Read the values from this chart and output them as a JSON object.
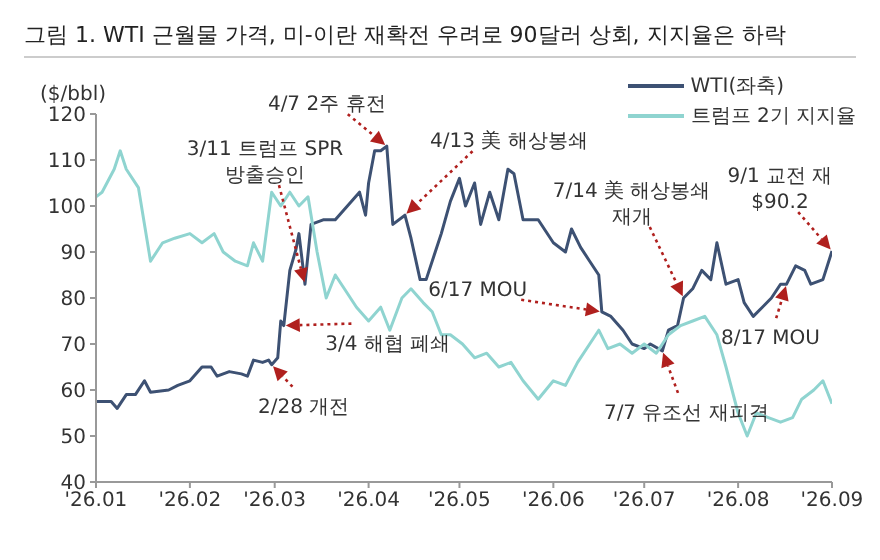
{
  "chart_data": {
    "type": "line",
    "title": "그림 1. WTI 근월물 가격, 미-이란 재확전 우려로 90달러 상회, 지지율은 하락",
    "ylabel": "($/bbl)",
    "ylim": [
      40,
      120
    ],
    "yticks": [
      40,
      50,
      60,
      70,
      80,
      90,
      100,
      110,
      120
    ],
    "xlim": [
      "2026-01-01",
      "2026-09-01"
    ],
    "xticks": [
      {
        "value": "2026-01-01",
        "label": "'26.01"
      },
      {
        "value": "2026-02-01",
        "label": "'26.02"
      },
      {
        "value": "2026-03-01",
        "label": "'26.03"
      },
      {
        "value": "2026-04-01",
        "label": "'26.04"
      },
      {
        "value": "2026-05-01",
        "label": "'26.05"
      },
      {
        "value": "2026-06-01",
        "label": "'26.06"
      },
      {
        "value": "2026-07-01",
        "label": "'26.07"
      },
      {
        "value": "2026-08-01",
        "label": "'26.08"
      },
      {
        "value": "2026-09-01",
        "label": "'26.09"
      }
    ],
    "legend": "top right",
    "grid": false,
    "marker": "none",
    "line_style": "solid",
    "series": [
      {
        "name": "WTI(좌축)",
        "color": "#3d5173",
        "x": [
          "2026-01-01",
          "2026-01-06",
          "2026-01-08",
          "2026-01-11",
          "2026-01-14",
          "2026-01-17",
          "2026-01-19",
          "2026-01-25",
          "2026-01-28",
          "2026-02-01",
          "2026-02-05",
          "2026-02-08",
          "2026-02-10",
          "2026-02-14",
          "2026-02-18",
          "2026-02-20",
          "2026-02-22",
          "2026-02-25",
          "2026-02-27",
          "2026-02-28",
          "2026-03-02",
          "2026-03-03",
          "2026-03-04",
          "2026-03-06",
          "2026-03-08",
          "2026-03-09",
          "2026-03-11",
          "2026-03-13",
          "2026-03-17",
          "2026-03-21",
          "2026-03-25",
          "2026-03-29",
          "2026-03-31",
          "2026-04-01",
          "2026-04-03",
          "2026-04-05",
          "2026-04-07",
          "2026-04-09",
          "2026-04-13",
          "2026-04-15",
          "2026-04-18",
          "2026-04-20",
          "2026-04-23",
          "2026-04-25",
          "2026-04-28",
          "2026-05-01",
          "2026-05-03",
          "2026-05-06",
          "2026-05-08",
          "2026-05-11",
          "2026-05-14",
          "2026-05-17",
          "2026-05-19",
          "2026-05-22",
          "2026-05-27",
          "2026-06-01",
          "2026-06-05",
          "2026-06-07",
          "2026-06-10",
          "2026-06-13",
          "2026-06-16",
          "2026-06-17",
          "2026-06-20",
          "2026-06-24",
          "2026-06-27",
          "2026-07-01",
          "2026-07-03",
          "2026-07-07",
          "2026-07-09",
          "2026-07-12",
          "2026-07-14",
          "2026-07-17",
          "2026-07-20",
          "2026-07-23",
          "2026-07-25",
          "2026-07-28",
          "2026-08-01",
          "2026-08-03",
          "2026-08-06",
          "2026-08-09",
          "2026-08-12",
          "2026-08-15",
          "2026-08-17",
          "2026-08-20",
          "2026-08-23",
          "2026-08-25",
          "2026-08-29",
          "2026-09-01"
        ],
        "values": [
          57.5,
          57.5,
          56,
          59,
          59,
          62,
          59.5,
          60,
          61,
          62,
          65,
          65,
          63,
          64,
          63.5,
          63,
          66.5,
          66,
          66.5,
          65.5,
          67,
          75,
          74,
          86,
          90.5,
          94,
          83,
          96,
          97,
          97,
          100,
          103,
          98,
          105,
          112,
          112,
          113,
          96,
          98,
          93,
          84,
          84,
          90,
          94,
          101,
          106,
          100,
          105,
          96,
          103,
          97,
          108,
          107,
          97,
          97,
          92,
          90,
          95,
          91,
          88,
          85,
          77,
          76,
          73,
          70,
          69,
          70,
          68.5,
          73,
          74,
          80,
          82,
          86,
          84,
          92,
          83,
          84,
          79,
          76,
          78,
          80,
          83,
          83,
          87,
          86,
          83,
          84,
          90.2
        ]
      },
      {
        "name": "트럼프 2기 지지율",
        "color": "#8fd4d0",
        "x": [
          "2026-01-01",
          "2026-01-03",
          "2026-01-07",
          "2026-01-09",
          "2026-01-11",
          "2026-01-15",
          "2026-01-19",
          "2026-01-23",
          "2026-01-27",
          "2026-02-01",
          "2026-02-05",
          "2026-02-09",
          "2026-02-12",
          "2026-02-16",
          "2026-02-20",
          "2026-02-22",
          "2026-02-25",
          "2026-02-28",
          "2026-03-03",
          "2026-03-06",
          "2026-03-09",
          "2026-03-12",
          "2026-03-15",
          "2026-03-18",
          "2026-03-21",
          "2026-03-24",
          "2026-03-28",
          "2026-04-01",
          "2026-04-05",
          "2026-04-08",
          "2026-04-12",
          "2026-04-15",
          "2026-04-19",
          "2026-04-22",
          "2026-04-25",
          "2026-04-28",
          "2026-05-02",
          "2026-05-06",
          "2026-05-10",
          "2026-05-14",
          "2026-05-18",
          "2026-05-22",
          "2026-05-27",
          "2026-06-01",
          "2026-06-05",
          "2026-06-09",
          "2026-06-13",
          "2026-06-16",
          "2026-06-19",
          "2026-06-23",
          "2026-06-27",
          "2026-07-01",
          "2026-07-05",
          "2026-07-09",
          "2026-07-13",
          "2026-07-17",
          "2026-07-21",
          "2026-07-25",
          "2026-07-28",
          "2026-08-01",
          "2026-08-04",
          "2026-08-07",
          "2026-08-11",
          "2026-08-15",
          "2026-08-19",
          "2026-08-22",
          "2026-08-26",
          "2026-08-29",
          "2026-09-01"
        ],
        "values": [
          102,
          103,
          108,
          112,
          108,
          104,
          88,
          92,
          93,
          94,
          92,
          94,
          90,
          88,
          87,
          92,
          88,
          103,
          100,
          103,
          100,
          102,
          90,
          80,
          85,
          82,
          78,
          75,
          78,
          73,
          80,
          82,
          79,
          77,
          72,
          72,
          70,
          67,
          68,
          65,
          66,
          62,
          58,
          62,
          61,
          66,
          70,
          73,
          69,
          70,
          68,
          70,
          68,
          72,
          74,
          75,
          76,
          72,
          65,
          55,
          50,
          55,
          54,
          53,
          54,
          58,
          60,
          62,
          57
        ]
      }
    ],
    "annotations": [
      {
        "text": "4/7 2주 휴전",
        "x": "2026-04-07",
        "y": 113
      },
      {
        "text": "4/13 美 해상봉쇄",
        "x": "2026-04-13",
        "y": 98
      },
      {
        "text": "3/11 트럼프 SPR\n방출승인",
        "x": "2026-03-11",
        "y": 83
      },
      {
        "text": "7/14 美 해상봉쇄\n재개",
        "x": "2026-07-14",
        "y": 80
      },
      {
        "text": "9/1 교전 재\n$90.2",
        "x": "2026-09-01",
        "y": 90.2
      },
      {
        "text": "6/17 MOU",
        "x": "2026-06-17",
        "y": 77
      },
      {
        "text": "8/17 MOU",
        "x": "2026-08-17",
        "y": 83
      },
      {
        "text": "7/7 유조선 재피격",
        "x": "2026-07-07",
        "y": 68.5
      },
      {
        "text": "3/4 해협 폐쇄",
        "x": "2026-03-04",
        "y": 74
      },
      {
        "text": "2/28 개전",
        "x": "2026-02-28",
        "y": 65.5
      }
    ]
  }
}
